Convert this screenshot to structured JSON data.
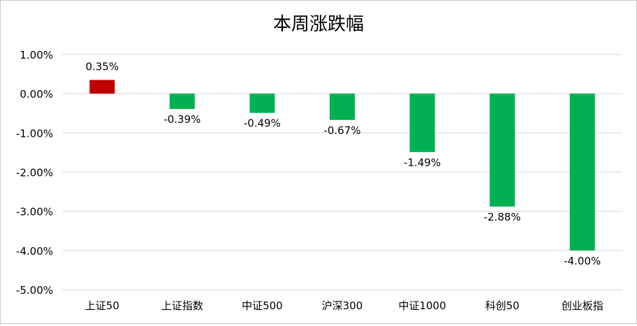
{
  "chart_data": {
    "type": "bar",
    "title": "本周涨跌幅",
    "xlabel": "",
    "ylabel": "",
    "categories": [
      "上证50",
      "上证指数",
      "中证500",
      "沪深300",
      "中证1000",
      "科创50",
      "创业板指"
    ],
    "values": [
      0.35,
      -0.39,
      -0.49,
      -0.67,
      -1.49,
      -2.88,
      -4.0
    ],
    "data_labels": [
      "0.35%",
      "-0.39%",
      "-0.49%",
      "-0.67%",
      "-1.49%",
      "-2.88%",
      "-4.00%"
    ],
    "ylim": [
      -5,
      1
    ],
    "y_ticks": [
      1,
      0,
      -1,
      -2,
      -3,
      -4,
      -5
    ],
    "y_tick_labels": [
      "1.00%",
      "0.00%",
      "-1.00%",
      "-2.00%",
      "-3.00%",
      "-4.00%",
      "-5.00%"
    ],
    "grid": true,
    "legend": "none",
    "colors": {
      "positive": "#c00000",
      "negative": "#00b050",
      "grid": "#d9d9d9",
      "text": "#000000"
    }
  }
}
